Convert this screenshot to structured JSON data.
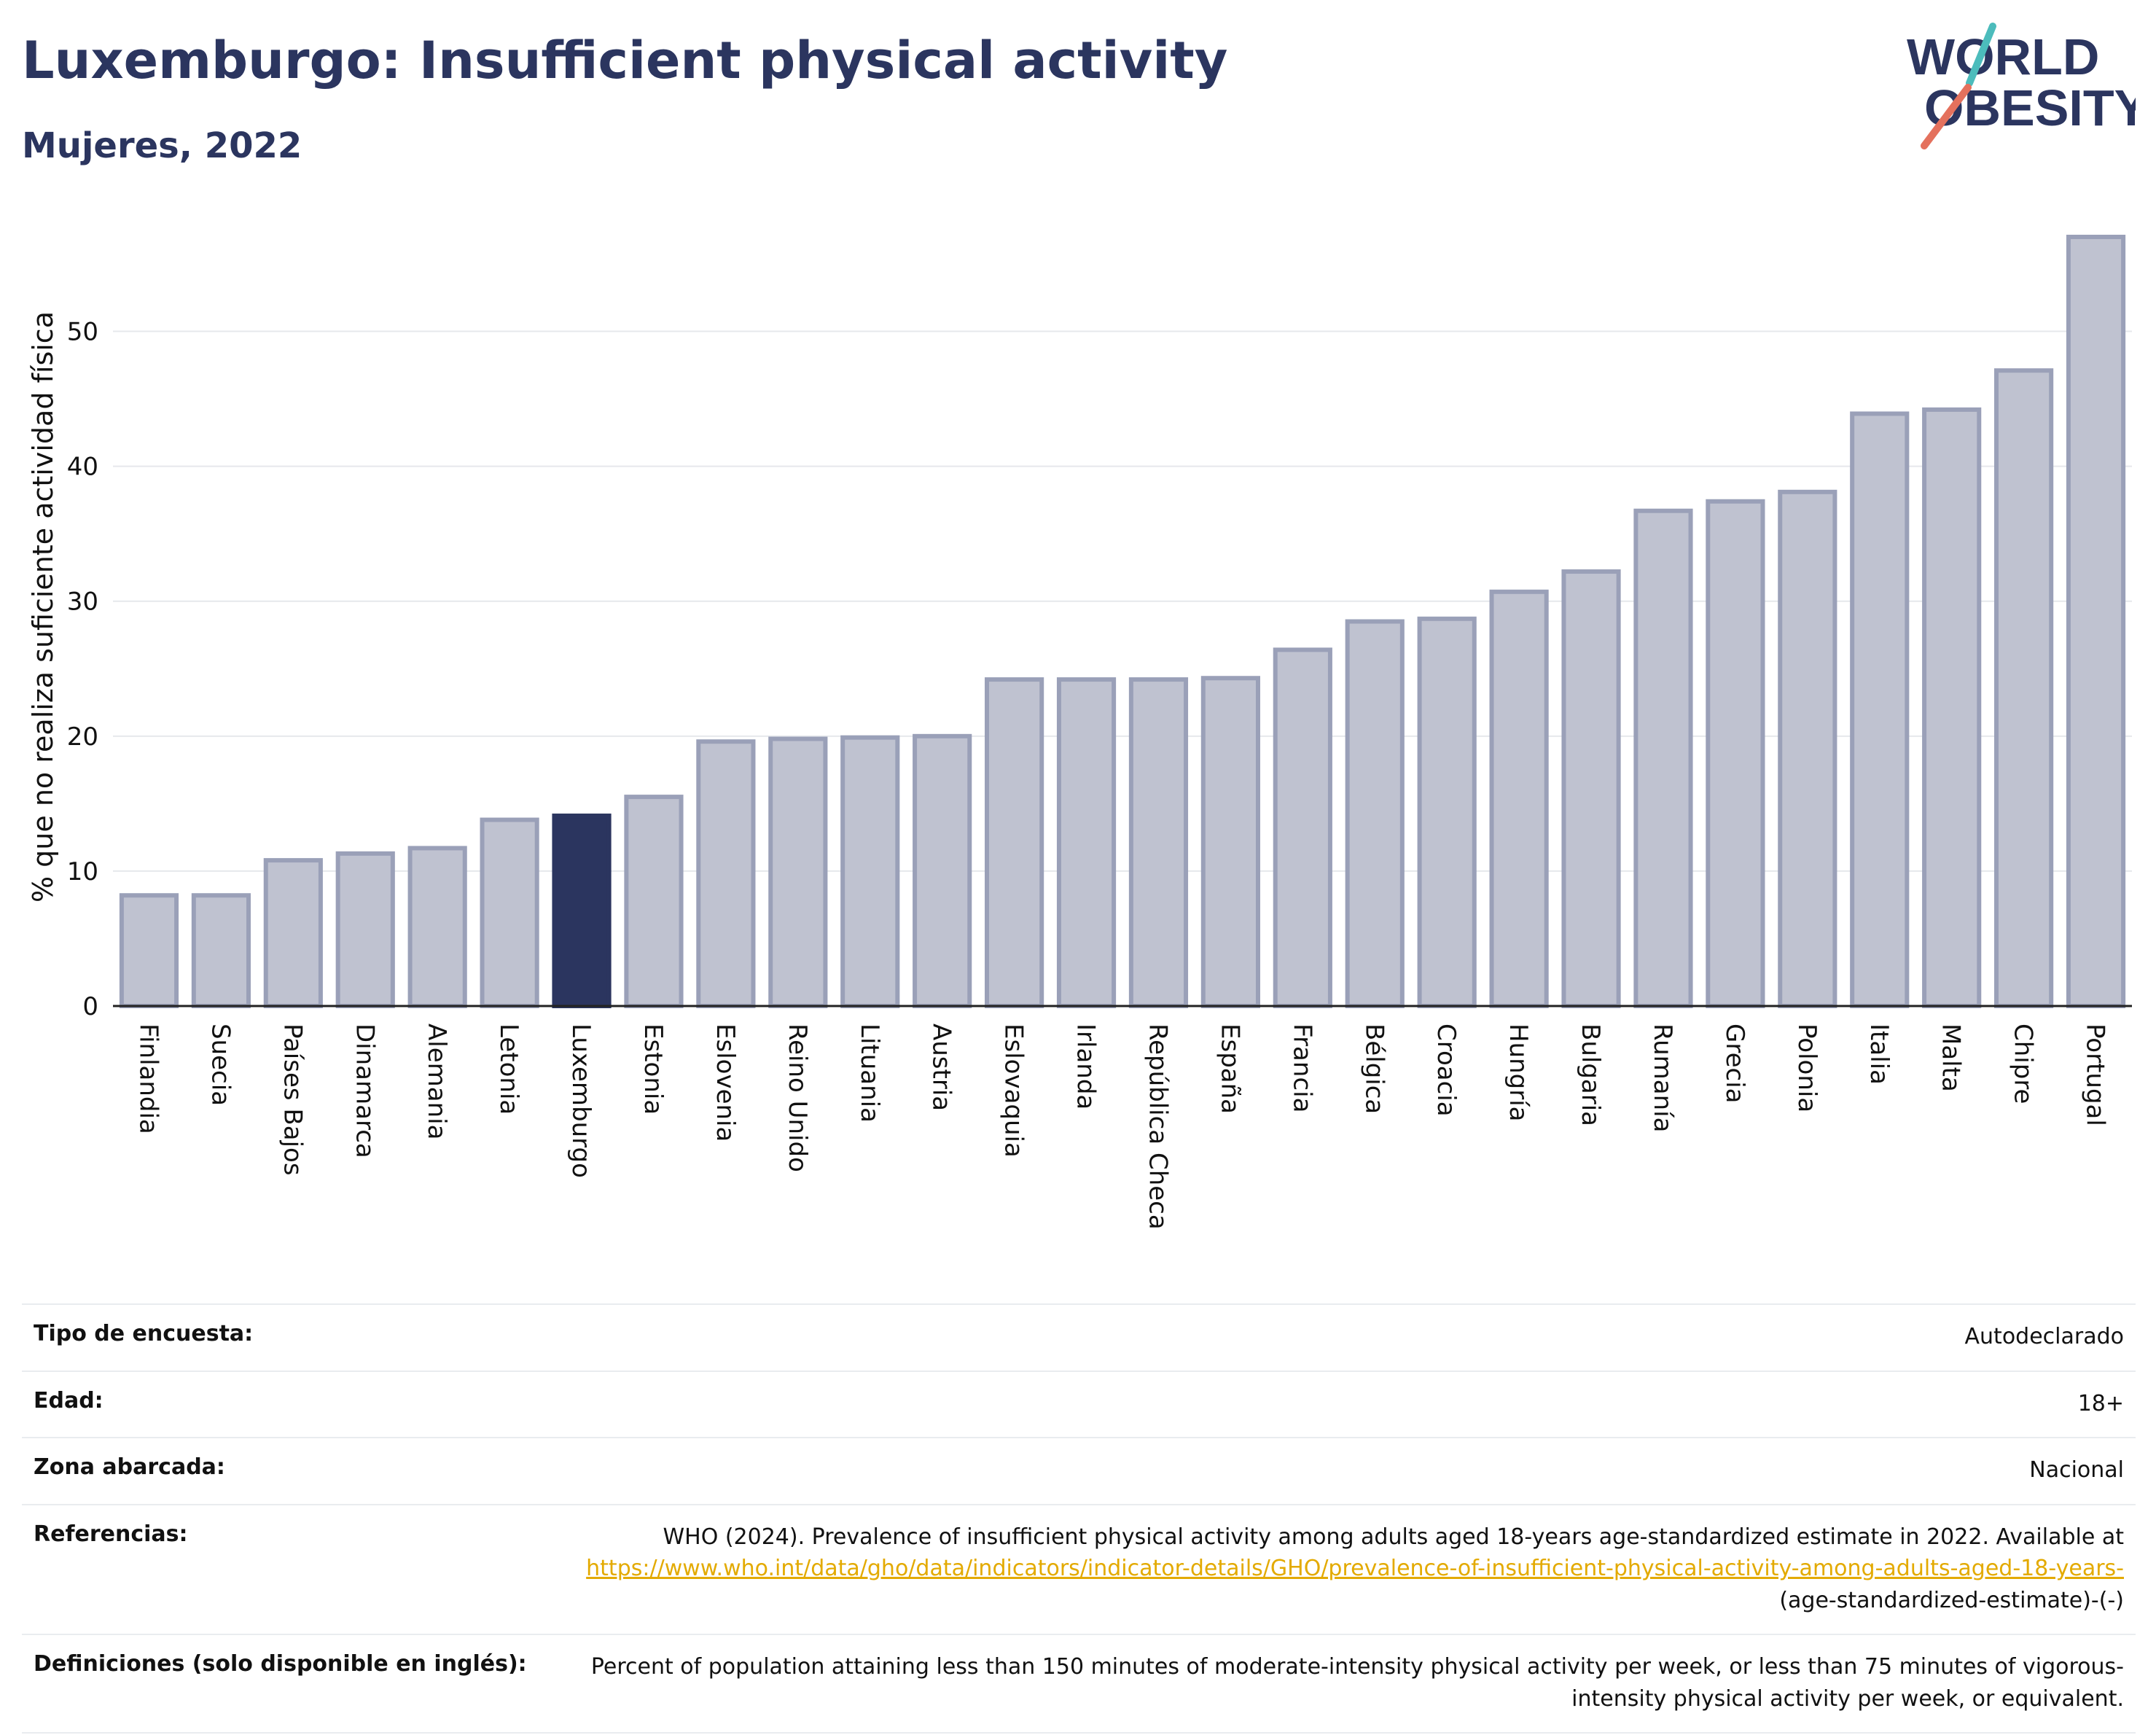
{
  "title": "Luxemburgo: Insufficient physical activity",
  "subtitle": "Mujeres, 2022",
  "logo": {
    "line1": "WORLD",
    "line2": "OBESITY"
  },
  "colors": {
    "navy": "#2b355f",
    "bar": "#bfc2d0",
    "bar_edge": "#9aa0b8",
    "highlight": "#2b355f",
    "link": "#e3aa00",
    "accent_teal": "#4cbcbc",
    "accent_red": "#e4715d"
  },
  "chart_data": {
    "type": "bar",
    "title": "Luxemburgo: Insufficient physical activity",
    "subtitle": "Mujeres, 2022",
    "xlabel": "",
    "ylabel": "% que no realiza suficiente actividad física",
    "ylim": [
      0,
      57
    ],
    "yticks": [
      0,
      10,
      20,
      30,
      40,
      50
    ],
    "grid": true,
    "highlight": "Luxemburgo",
    "categories": [
      "Finlandia",
      "Suecia",
      "Países Bajos",
      "Dinamarca",
      "Alemania",
      "Letonia",
      "Luxemburgo",
      "Estonia",
      "Eslovenia",
      "Reino Unido",
      "Lituania",
      "Austria",
      "Eslovaquia",
      "Irlanda",
      "República Checa",
      "España",
      "Francia",
      "Bélgica",
      "Croacia",
      "Hungría",
      "Bulgaria",
      "Rumanía",
      "Grecia",
      "Polonia",
      "Italia",
      "Malta",
      "Chipre",
      "Portugal"
    ],
    "values": [
      8.2,
      8.2,
      10.8,
      11.3,
      11.7,
      13.8,
      14.1,
      15.5,
      19.6,
      19.8,
      19.9,
      20.0,
      24.2,
      24.2,
      24.2,
      24.3,
      26.4,
      28.5,
      28.7,
      30.7,
      32.2,
      36.7,
      37.4,
      38.1,
      43.9,
      44.2,
      47.1,
      57.0
    ]
  },
  "meta": [
    {
      "key": "Tipo de encuesta:",
      "value": "Autodeclarado"
    },
    {
      "key": "Edad:",
      "value": "18+"
    },
    {
      "key": "Zona abarcada:",
      "value": "Nacional"
    },
    {
      "key": "Referencias:",
      "value": "WHO (2024). Prevalence of insufficient physical activity among adults aged 18-years age-standardized estimate in 2022. Available at",
      "link": "https://www.who.int/data/gho/data/indicators/indicator-details/GHO/prevalence-of-insufficient-physical-activity-among-adults-aged-18-years-",
      "suffix": "(age-standardized-estimate)-(-)"
    },
    {
      "key": "Definiciones (solo disponible en inglés):",
      "value": "Percent of population attaining less than 150 minutes of moderate-intensity physical activity per week, or less than 75 minutes of vigorous-intensity physical activity per week, or equivalent."
    }
  ]
}
